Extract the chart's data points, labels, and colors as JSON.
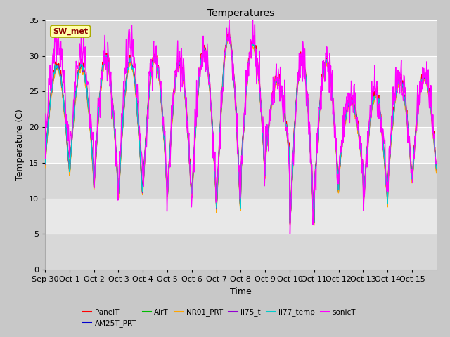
{
  "title": "Temperatures",
  "xlabel": "Time",
  "ylabel": "Temperature (C)",
  "ylim": [
    0,
    35
  ],
  "yticks": [
    0,
    5,
    10,
    15,
    20,
    25,
    30,
    35
  ],
  "annotation": "SW_met",
  "figsize": [
    6.4,
    4.8
  ],
  "dpi": 100,
  "series_names": [
    "PanelT",
    "AM25T_PRT",
    "AirT",
    "NR01_PRT",
    "li75_t",
    "li77_temp",
    "sonicT"
  ],
  "series_colors": [
    "#FF0000",
    "#0000CD",
    "#00BB00",
    "#FFA500",
    "#9400D3",
    "#00CCCC",
    "#FF00FF"
  ],
  "fig_bg": "#C8C8C8",
  "plot_bg_light": "#E8E8E8",
  "plot_bg_dark": "#D8D8D8",
  "grid_color": "#FFFFFF",
  "x_labels": [
    "Sep 30",
    "Oct 1",
    "Oct 2",
    "Oct 3",
    "Oct 4",
    "Oct 5",
    "Oct 6",
    "Oct 7",
    "Oct 8",
    "Oct 9",
    "Oct 10",
    "Oct 11",
    "Oct 12",
    "Oct 13",
    "Oct 14",
    "Oct 15"
  ],
  "day_peaks": [
    29,
    29,
    30,
    29.5,
    30,
    29.5,
    31,
    33,
    32,
    27,
    30,
    29.5,
    24,
    25,
    27,
    27.5
  ],
  "day_mins": [
    15,
    14,
    12,
    11,
    12,
    11,
    11,
    9,
    14,
    16,
    7,
    12,
    14,
    10,
    13,
    14
  ],
  "sonic_offset": [
    3,
    2,
    0,
    2,
    0,
    0,
    0,
    0,
    0,
    0,
    0,
    0,
    0,
    0,
    0,
    0
  ],
  "lw": 1.0
}
